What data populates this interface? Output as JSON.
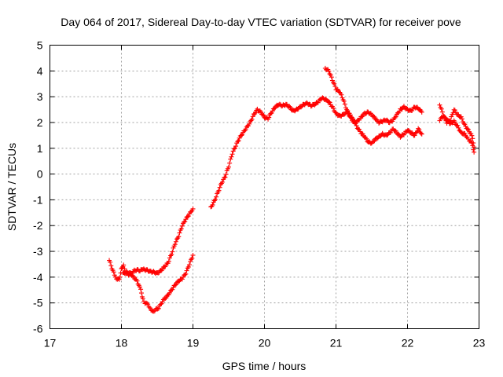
{
  "chart_data": {
    "type": "scatter",
    "title": "Day 064 of 2017, Sidereal Day-to-day VTEC variation (SDTVAR) for receiver pove",
    "xlabel": "GPS time / hours",
    "ylabel": "SDTVAR / TECUs",
    "xlim": [
      17,
      23
    ],
    "ylim": [
      -6,
      5
    ],
    "xticks": [
      "17",
      "18",
      "19",
      "20",
      "21",
      "22",
      "23"
    ],
    "yticks": [
      "-6",
      "-5",
      "-4",
      "-3",
      "-2",
      "-1",
      "0",
      "1",
      "2",
      "3",
      "4",
      "5"
    ],
    "grid": true,
    "marker": "+",
    "color": "#ff0000",
    "series": [
      {
        "x": [
          17.83,
          17.88,
          17.93,
          17.97,
          18.0,
          18.03,
          18.06,
          18.1,
          18.14,
          18.18,
          18.22,
          18.26,
          18.3,
          18.35,
          18.4,
          18.45,
          18.5,
          18.55,
          18.6,
          18.65,
          18.7,
          18.75,
          18.8,
          18.85,
          18.9,
          18.95,
          19.0
        ],
        "y": [
          -3.35,
          -3.75,
          -4.05,
          -4.1,
          -3.7,
          -3.5,
          -3.85,
          -3.9,
          -3.85,
          -3.75,
          -3.72,
          -3.75,
          -3.7,
          -3.72,
          -3.78,
          -3.8,
          -3.85,
          -3.75,
          -3.6,
          -3.45,
          -3.1,
          -2.7,
          -2.4,
          -2.0,
          -1.75,
          -1.55,
          -1.35
        ]
      },
      {
        "x": [
          18.02,
          18.07,
          18.12,
          18.17,
          18.22,
          18.27,
          18.3,
          18.33,
          18.37,
          18.4,
          18.44,
          18.48,
          18.52,
          18.56,
          18.6,
          18.65,
          18.7,
          18.75,
          18.8,
          18.85,
          18.9,
          18.95,
          19.0
        ],
        "y": [
          -3.85,
          -3.8,
          -3.85,
          -4.0,
          -4.15,
          -4.5,
          -4.85,
          -5.0,
          -5.05,
          -5.2,
          -5.35,
          -5.25,
          -5.2,
          -5.0,
          -4.85,
          -4.7,
          -4.5,
          -4.3,
          -4.15,
          -4.05,
          -3.85,
          -3.5,
          -3.15
        ]
      },
      {
        "x": [
          19.25,
          19.3,
          19.35,
          19.4,
          19.45,
          19.5,
          19.55,
          19.6,
          19.65,
          19.7,
          19.75,
          19.8,
          19.85,
          19.9,
          19.95,
          20.0,
          20.05,
          20.1,
          20.15,
          20.2,
          20.25,
          20.3,
          20.35,
          20.4,
          20.45,
          20.5,
          20.55,
          20.6,
          20.65,
          20.7,
          20.75,
          20.8,
          20.85,
          20.9,
          20.95,
          21.0,
          21.05,
          21.1,
          21.15,
          21.2,
          21.25,
          21.3,
          21.35,
          21.4,
          21.45,
          21.5,
          21.55,
          21.6,
          21.65,
          21.7,
          21.75,
          21.8,
          21.85,
          21.9,
          21.95,
          22.0,
          22.05,
          22.1,
          22.15,
          22.2
        ],
        "y": [
          -1.3,
          -1.05,
          -0.7,
          -0.35,
          -0.1,
          0.3,
          0.8,
          1.1,
          1.4,
          1.6,
          1.8,
          2.0,
          2.3,
          2.5,
          2.4,
          2.2,
          2.15,
          2.4,
          2.6,
          2.7,
          2.65,
          2.7,
          2.6,
          2.45,
          2.5,
          2.6,
          2.7,
          2.75,
          2.65,
          2.7,
          2.8,
          2.95,
          2.9,
          2.8,
          2.6,
          2.35,
          2.25,
          2.3,
          2.4,
          2.3,
          2.05,
          1.8,
          1.6,
          1.45,
          1.25,
          1.2,
          1.35,
          1.45,
          1.55,
          1.5,
          1.6,
          1.75,
          1.6,
          1.45,
          1.55,
          1.7,
          1.6,
          1.5,
          1.75,
          1.55
        ]
      },
      {
        "x": [
          20.85,
          20.9,
          20.95,
          21.0,
          21.05,
          21.1,
          21.15,
          21.2,
          21.25,
          21.3,
          21.35,
          21.4,
          21.45,
          21.5,
          21.55,
          21.6,
          21.65,
          21.7,
          21.75,
          21.8,
          21.85,
          21.9,
          21.95,
          22.0,
          22.05,
          22.1,
          22.15,
          22.2
        ],
        "y": [
          4.1,
          4.0,
          3.65,
          3.3,
          3.2,
          2.9,
          2.5,
          2.2,
          2.0,
          2.05,
          2.2,
          2.35,
          2.4,
          2.3,
          2.15,
          2.0,
          2.05,
          2.1,
          2.0,
          2.1,
          2.3,
          2.5,
          2.6,
          2.5,
          2.45,
          2.6,
          2.55,
          2.4
        ]
      },
      {
        "x": [
          22.45,
          22.5,
          22.55,
          22.6,
          22.65,
          22.7,
          22.75,
          22.8,
          22.85,
          22.9,
          22.93
        ],
        "y": [
          2.7,
          2.3,
          2.0,
          2.1,
          2.5,
          2.3,
          2.2,
          1.9,
          1.7,
          1.5,
          1.05
        ]
      },
      {
        "x": [
          22.45,
          22.5,
          22.55,
          22.6,
          22.65,
          22.7,
          22.75,
          22.8,
          22.85,
          22.9,
          22.93
        ],
        "y": [
          2.1,
          2.25,
          2.1,
          1.95,
          2.05,
          1.85,
          1.6,
          1.55,
          1.35,
          1.2,
          0.85
        ]
      }
    ]
  }
}
